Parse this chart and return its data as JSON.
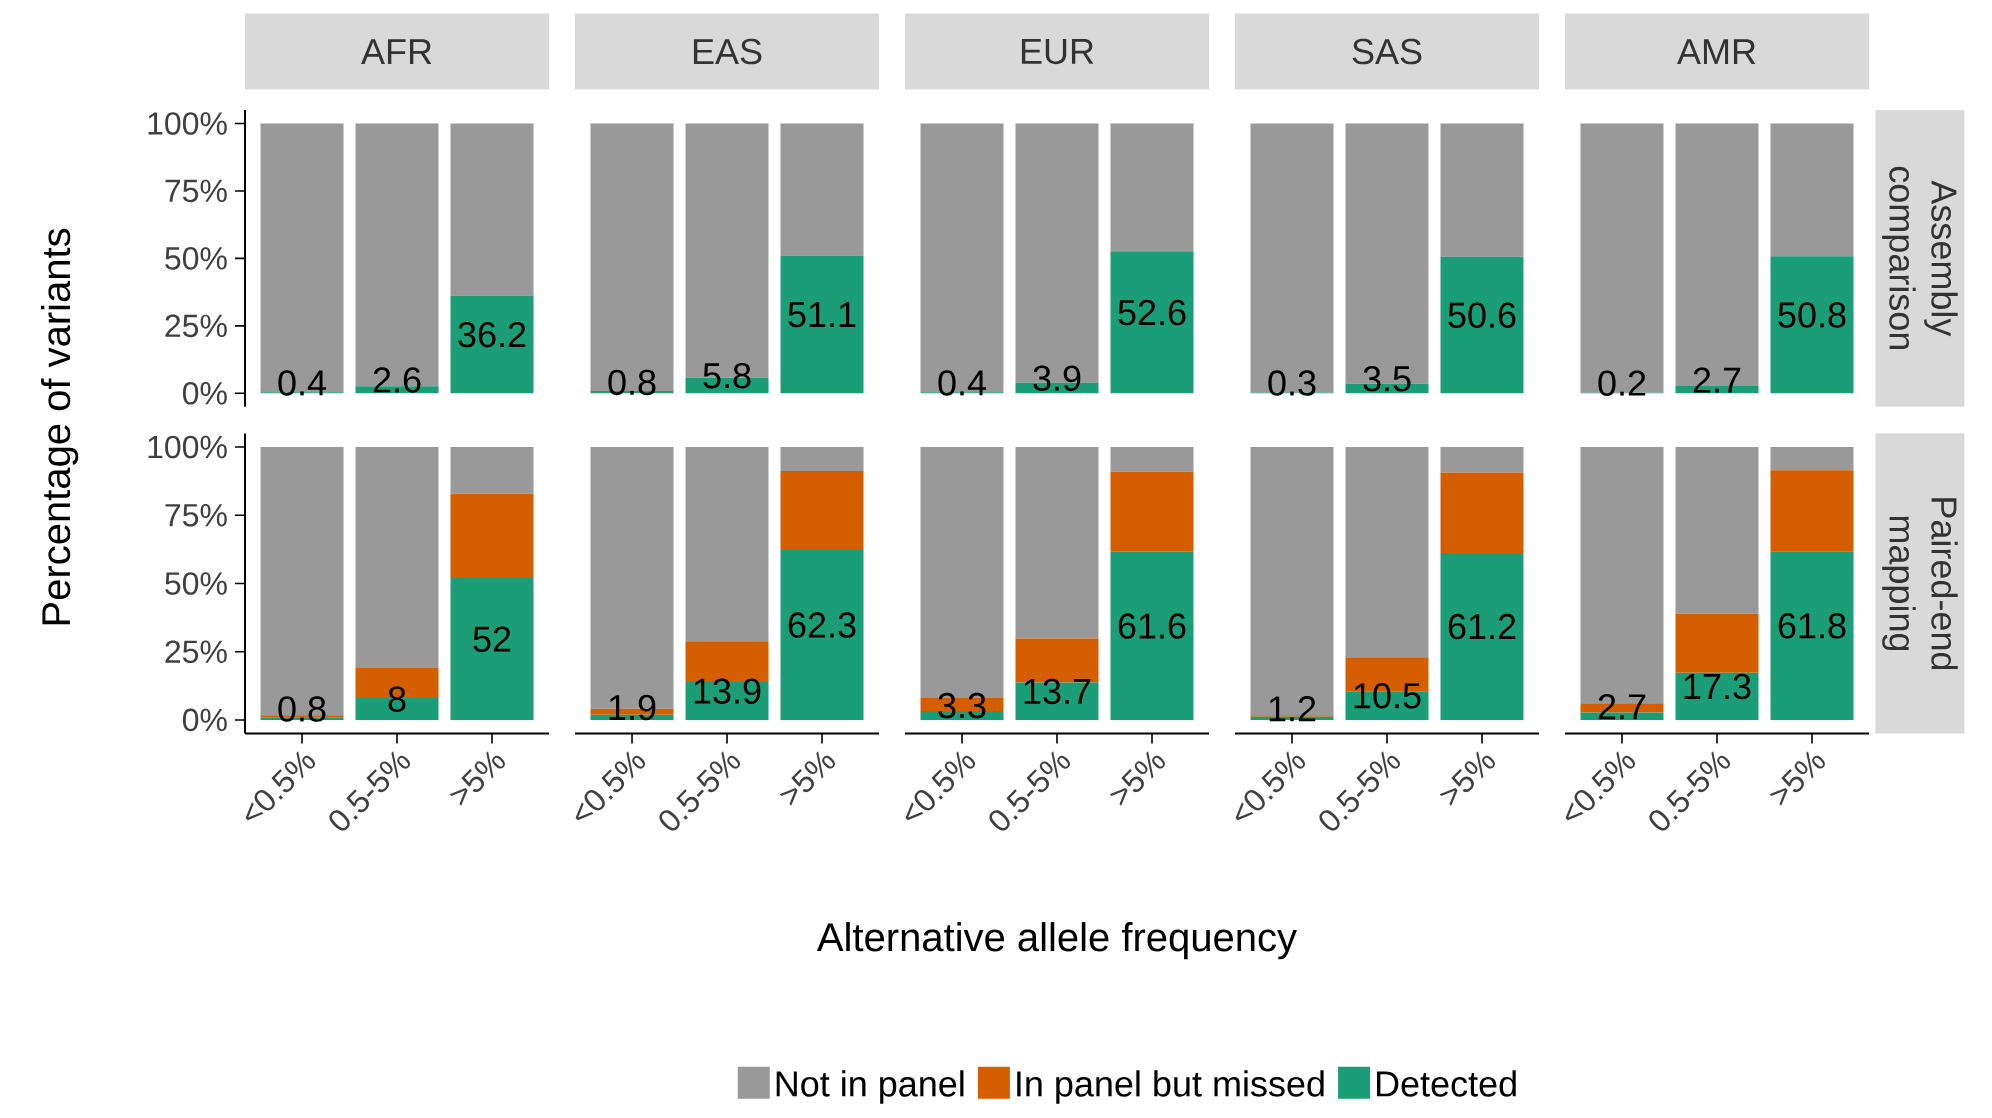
{
  "chart_data": [
    {
      "type": "bar",
      "stacked": true,
      "title": "AFR",
      "categories": [
        null,
        null,
        null
      ],
      "ylim": [
        -5,
        105
      ],
      "yticks": [
        {
          "value": 0,
          "label": "0%"
        },
        {
          "value": 25,
          "label": "25%"
        },
        {
          "value": 50,
          "label": "50%"
        },
        {
          "value": 75,
          "label": "75%"
        },
        {
          "value": 100,
          "label": "100%"
        }
      ],
      "tick_labels": "y",
      "series": [
        {
          "color": "#1b9e77",
          "values": [
            0.4,
            2.6,
            36.2
          ],
          "value_labels": [
            "0.4",
            "2.6",
            "36.2"
          ]
        },
        {
          "color": "#999999",
          "values": [
            99.6,
            97.4,
            63.8
          ]
        }
      ]
    },
    {
      "type": "bar",
      "stacked": true,
      "title": "EAS",
      "categories": [
        null,
        null,
        null
      ],
      "tick_labels": false,
      "series": [
        {
          "color": "#1b9e77",
          "values": [
            0.8,
            5.8,
            51.1
          ],
          "value_labels": [
            "0.8",
            "5.8",
            "51.1"
          ]
        },
        {
          "color": "#999999",
          "values": [
            99.2,
            94.2,
            48.9
          ]
        }
      ]
    },
    {
      "type": "bar",
      "stacked": true,
      "title": "EUR",
      "categories": [
        null,
        null,
        null
      ],
      "tick_labels": false,
      "series": [
        {
          "color": "#1b9e77",
          "values": [
            0.4,
            3.9,
            52.6
          ],
          "value_labels": [
            "0.4",
            "3.9",
            "52.6"
          ]
        },
        {
          "color": "#999999",
          "values": [
            99.6,
            96.1,
            47.4
          ]
        }
      ]
    },
    {
      "type": "bar",
      "stacked": true,
      "title": "SAS",
      "categories": [
        null,
        null,
        null
      ],
      "tick_labels": false,
      "series": [
        {
          "color": "#1b9e77",
          "values": [
            0.3,
            3.5,
            50.6
          ],
          "value_labels": [
            "0.3",
            "3.5",
            "50.6"
          ]
        },
        {
          "color": "#999999",
          "values": [
            99.7,
            96.5,
            49.4
          ]
        }
      ]
    },
    {
      "type": "bar",
      "stacked": true,
      "title": "AMR",
      "y2label": "Assembly comparison",
      "categories": [
        null,
        null,
        null
      ],
      "tick_labels": false,
      "series": [
        {
          "color": "#1b9e77",
          "values": [
            0.2,
            2.7,
            50.8
          ],
          "value_labels": [
            "0.2",
            "2.7",
            "50.8"
          ]
        },
        {
          "color": "#999999",
          "values": [
            99.8,
            97.3,
            49.2
          ]
        }
      ]
    },
    {
      "type": "bar",
      "stacked": true,
      "ylabel": "Percentage of variants",
      "categories": [
        "<0.5%",
        "0.5-5%",
        ">5%"
      ],
      "ylim": [
        -5,
        105
      ],
      "yticks": [
        {
          "value": 0,
          "label": "0%"
        },
        {
          "value": 25,
          "label": "25%"
        },
        {
          "value": 50,
          "label": "50%"
        },
        {
          "value": 75,
          "label": "75%"
        },
        {
          "value": 100,
          "label": "100%"
        }
      ],
      "series": [
        {
          "color": "#1b9e77",
          "values": [
            0.8,
            8,
            52
          ],
          "value_labels": [
            "0.8",
            "8",
            "52"
          ]
        },
        {
          "color": "#d55e00",
          "values": [
            0.9,
            11,
            31
          ]
        },
        {
          "color": "#999999",
          "values": [
            98.3,
            81,
            17
          ]
        }
      ]
    },
    {
      "type": "bar",
      "stacked": true,
      "categories": [
        "<0.5%",
        "0.5-5%",
        ">5%"
      ],
      "tick_labels": "x",
      "series": [
        {
          "color": "#1b9e77",
          "values": [
            1.9,
            13.9,
            62.3
          ],
          "value_labels": [
            "1.9",
            "13.9",
            "62.3"
          ]
        },
        {
          "color": "#d55e00",
          "values": [
            2.2,
            14.9,
            28.9
          ]
        },
        {
          "color": "#999999",
          "values": [
            95.9,
            71.2,
            8.8
          ]
        }
      ]
    },
    {
      "type": "bar",
      "stacked": true,
      "xlabel": "Alternative allele frequency",
      "legend": "bottom",
      "categories": [
        "<0.5%",
        "0.5-5%",
        ">5%"
      ],
      "tick_labels": "x",
      "series": [
        {
          "name": "Detected",
          "color": "#1b9e77",
          "values": [
            3.3,
            13.7,
            61.6
          ],
          "value_labels": [
            "3.3",
            "13.7",
            "61.6"
          ]
        },
        {
          "name": "In panel but missed",
          "color": "#d55e00",
          "values": [
            4.7,
            16.1,
            29.4
          ]
        },
        {
          "name": "Not in panel",
          "color": "#999999",
          "values": [
            92,
            70.2,
            9
          ]
        }
      ]
    },
    {
      "type": "bar",
      "stacked": true,
      "categories": [
        "<0.5%",
        "0.5-5%",
        ">5%"
      ],
      "tick_labels": "x",
      "series": [
        {
          "color": "#1b9e77",
          "values": [
            1.2,
            10.5,
            61.2
          ],
          "value_labels": [
            "1.2",
            "10.5",
            "61.2"
          ]
        },
        {
          "color": "#d55e00",
          "values": [
            0.5,
            12.5,
            29.5
          ]
        },
        {
          "color": "#999999",
          "values": [
            98.3,
            77,
            9.3
          ]
        }
      ]
    },
    {
      "type": "bar",
      "stacked": true,
      "y2label": "Paired-end mapping",
      "categories": [
        "<0.5%",
        "0.5-5%",
        ">5%"
      ],
      "tick_labels": "x",
      "series": [
        {
          "color": "#1b9e77",
          "values": [
            2.7,
            17.3,
            61.8
          ],
          "value_labels": [
            "2.7",
            "17.3",
            "61.8"
          ]
        },
        {
          "color": "#d55e00",
          "values": [
            3.4,
            21.7,
            29.7
          ]
        },
        {
          "color": "#999999",
          "values": [
            93.9,
            61,
            8.5
          ]
        }
      ]
    }
  ]
}
